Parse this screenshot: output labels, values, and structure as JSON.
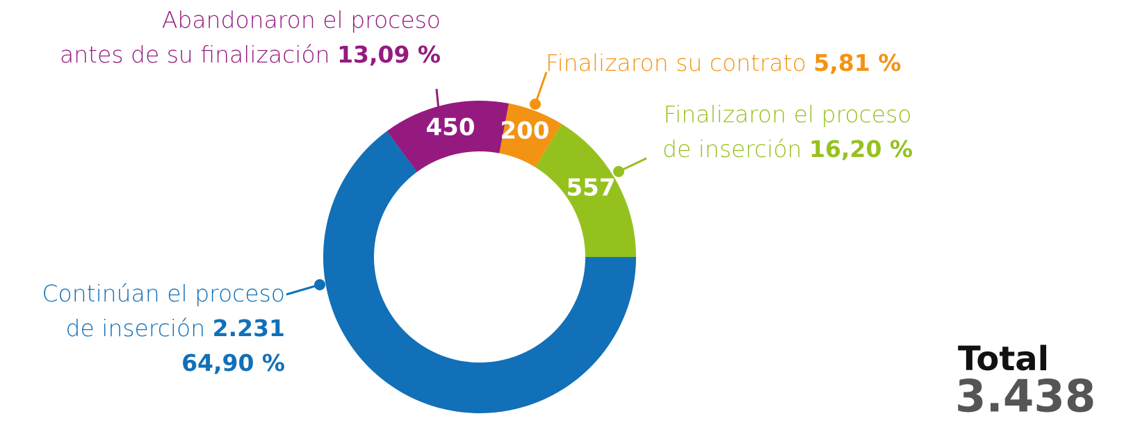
{
  "chart_data": {
    "type": "donut",
    "categories": [
      "Continúan el proceso de inserción",
      "Abandonaron el proceso antes de su finalización",
      "Finalizaron su contrato",
      "Finalizaron el proceso de inserción"
    ],
    "values": [
      2231,
      450,
      200,
      557
    ],
    "value_labels": [
      "2.231",
      "450",
      "200",
      "557"
    ],
    "percents": [
      64.9,
      13.09,
      5.81,
      16.2
    ],
    "percent_labels": [
      "64,90 %",
      "13,09 %",
      "5,81 %",
      "16,20 %"
    ],
    "colors": [
      "#1170b8",
      "#951a80",
      "#f39313",
      "#95c11f"
    ],
    "total_title": "Total",
    "total": 3438,
    "total_label": "3.438"
  }
}
